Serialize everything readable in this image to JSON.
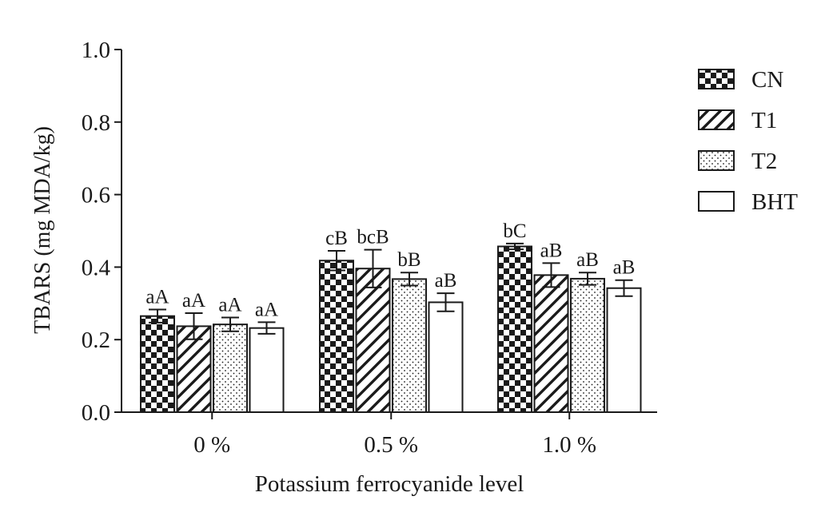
{
  "chart_data": {
    "type": "bar",
    "title": "",
    "xlabel": "Potassium ferrocyanide level",
    "ylabel": "TBARS (mg MDA/kg)",
    "ylim": [
      0,
      1.0
    ],
    "yticks": [
      "0.0",
      "0.2",
      "0.4",
      "0.6",
      "0.8",
      "1.0"
    ],
    "ytick_values": [
      0,
      0.2,
      0.4,
      0.6,
      0.8,
      1.0
    ],
    "grid": false,
    "legend_position": "top-right",
    "categories": [
      "0 %",
      "0.5 %",
      "1.0 %"
    ],
    "series": [
      {
        "name": "CN",
        "pattern": "checker",
        "values": [
          0.265,
          0.418,
          0.457
        ],
        "errors": [
          0.018,
          0.027,
          0.008
        ],
        "labels": [
          "aA",
          "cB",
          "bC"
        ]
      },
      {
        "name": "T1",
        "pattern": "diagonal",
        "values": [
          0.237,
          0.396,
          0.378
        ],
        "errors": [
          0.036,
          0.052,
          0.033
        ],
        "labels": [
          "aA",
          "bcB",
          "aB"
        ]
      },
      {
        "name": "T2",
        "pattern": "dots",
        "values": [
          0.242,
          0.367,
          0.368
        ],
        "errors": [
          0.019,
          0.018,
          0.017
        ],
        "labels": [
          "aA",
          "bB",
          "aB"
        ]
      },
      {
        "name": "BHT",
        "pattern": "empty",
        "values": [
          0.232,
          0.303,
          0.342
        ],
        "errors": [
          0.016,
          0.025,
          0.022
        ],
        "labels": [
          "aA",
          "aB",
          "aB"
        ]
      }
    ],
    "colors": {
      "ink": "#1a1a1a",
      "background": "#ffffff"
    }
  }
}
